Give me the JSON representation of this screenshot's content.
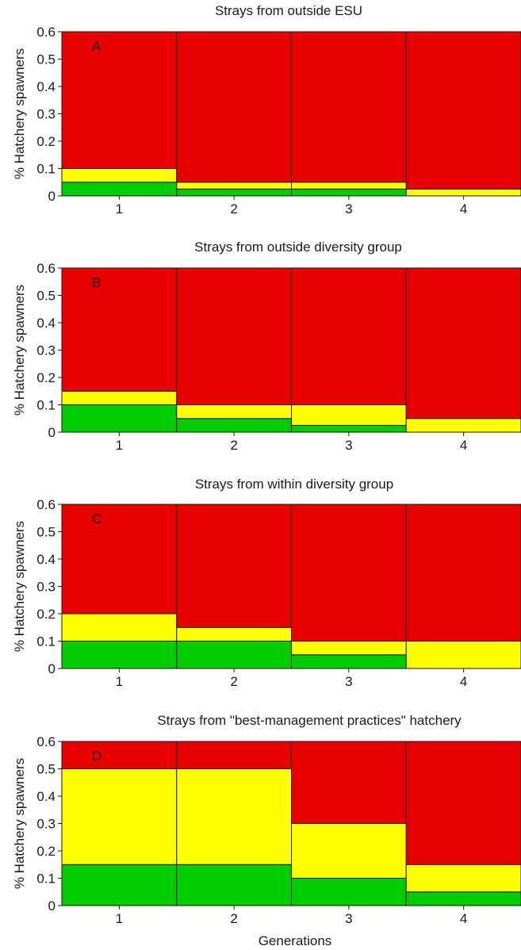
{
  "colors": {
    "green": "#00cc00",
    "yellow": "#ffff00",
    "red": "#e60000",
    "edge": "#1a1a1a",
    "background": "#ffffff"
  },
  "chart_data": [
    {
      "type": "bar",
      "panel_label": "A",
      "title": "Strays from outside ESU",
      "xlabel": "",
      "ylabel": "% Hatchery spawners",
      "categories": [
        "1",
        "2",
        "3",
        "4"
      ],
      "yticks": [
        "0",
        "0.1",
        "0.2",
        "0.3",
        "0.4",
        "0.5",
        "0.6"
      ],
      "ylim": [
        0,
        0.6
      ],
      "grid": false,
      "series": [
        {
          "color": "green",
          "values": [
            0.05,
            0.025,
            0.025,
            0.0
          ]
        },
        {
          "color": "yellow",
          "values": [
            0.1,
            0.05,
            0.05,
            0.025
          ]
        },
        {
          "color": "red",
          "values": [
            0.6,
            0.6,
            0.6,
            0.6
          ]
        }
      ]
    },
    {
      "type": "bar",
      "panel_label": "B",
      "title": "Strays from outside diversity group",
      "xlabel": "",
      "ylabel": "% Hatchery spawners",
      "categories": [
        "1",
        "2",
        "3",
        "4"
      ],
      "yticks": [
        "0",
        "0.1",
        "0.2",
        "0.3",
        "0.4",
        "0.5",
        "0.6"
      ],
      "ylim": [
        0,
        0.6
      ],
      "grid": false,
      "series": [
        {
          "color": "green",
          "values": [
            0.1,
            0.05,
            0.025,
            0.0
          ]
        },
        {
          "color": "yellow",
          "values": [
            0.15,
            0.1,
            0.1,
            0.05
          ]
        },
        {
          "color": "red",
          "values": [
            0.6,
            0.6,
            0.6,
            0.6
          ]
        }
      ]
    },
    {
      "type": "bar",
      "panel_label": "C",
      "title": "Strays from within diversity group",
      "xlabel": "",
      "ylabel": "% Hatchery spawners",
      "categories": [
        "1",
        "2",
        "3",
        "4"
      ],
      "yticks": [
        "0",
        "0.1",
        "0.2",
        "0.3",
        "0.4",
        "0.5",
        "0.6"
      ],
      "ylim": [
        0,
        0.6
      ],
      "grid": false,
      "series": [
        {
          "color": "green",
          "values": [
            0.1,
            0.1,
            0.05,
            0.0
          ]
        },
        {
          "color": "yellow",
          "values": [
            0.2,
            0.15,
            0.1,
            0.1
          ]
        },
        {
          "color": "red",
          "values": [
            0.6,
            0.6,
            0.6,
            0.6
          ]
        }
      ]
    },
    {
      "type": "bar",
      "panel_label": "D",
      "title": "Strays from \"best-management practices\" hatchery",
      "xlabel": "Generations",
      "ylabel": "% Hatchery spawners",
      "categories": [
        "1",
        "2",
        "3",
        "4"
      ],
      "yticks": [
        "0",
        "0.1",
        "0.2",
        "0.3",
        "0.4",
        "0.5",
        "0.6"
      ],
      "ylim": [
        0,
        0.6
      ],
      "grid": false,
      "series": [
        {
          "color": "green",
          "values": [
            0.15,
            0.15,
            0.1,
            0.05
          ]
        },
        {
          "color": "yellow",
          "values": [
            0.5,
            0.5,
            0.3,
            0.15
          ]
        },
        {
          "color": "red",
          "values": [
            0.6,
            0.6,
            0.6,
            0.6
          ]
        }
      ]
    }
  ]
}
